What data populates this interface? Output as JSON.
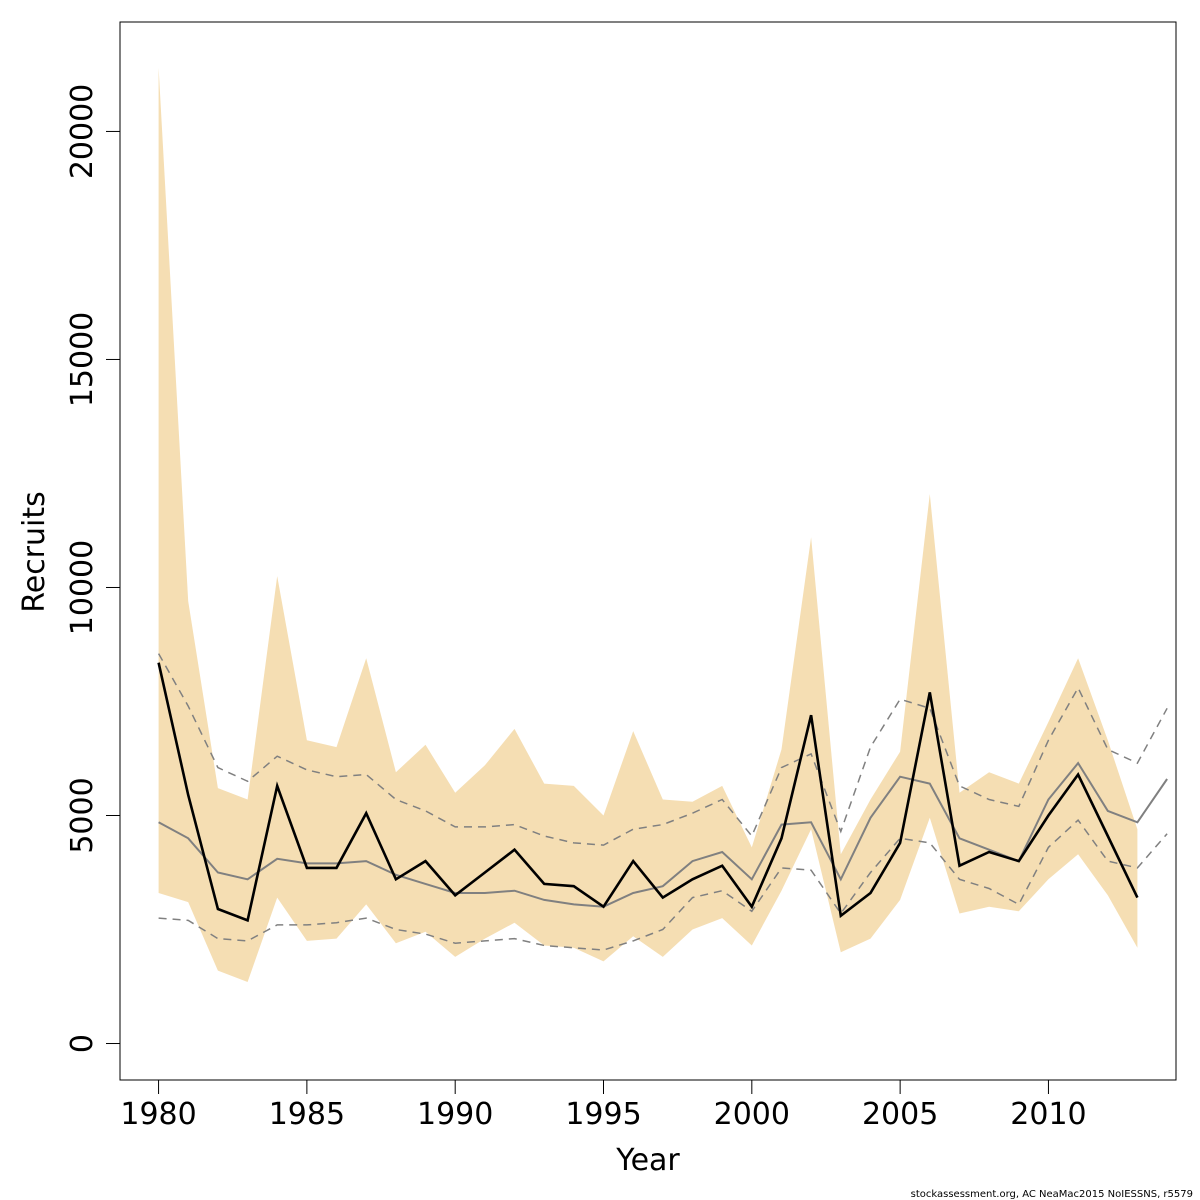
{
  "chart_data": {
    "type": "line",
    "xlabel": "Year",
    "ylabel": "Recruits",
    "xlim": [
      1978.7,
      2014.3
    ],
    "ylim": [
      -800,
      22400
    ],
    "xticks": [
      "1980",
      "1985",
      "1990",
      "1995",
      "2000",
      "2005",
      "2010"
    ],
    "yticks": [
      "0",
      "5000",
      "10000",
      "15000",
      "20000"
    ],
    "grid": false,
    "legend": "none",
    "colors": {
      "band": "#f5deb3",
      "estimate": "#000000",
      "alt_estimate": "#808080",
      "alt_bounds": "#808080"
    },
    "x": [
      1980,
      1981,
      1982,
      1983,
      1984,
      1985,
      1986,
      1987,
      1988,
      1989,
      1990,
      1991,
      1992,
      1993,
      1994,
      1995,
      1996,
      1997,
      1998,
      1999,
      2000,
      2001,
      2002,
      2003,
      2004,
      2005,
      2006,
      2007,
      2008,
      2009,
      2010,
      2011,
      2012,
      2013,
      2014
    ],
    "series": [
      {
        "role": "estimate",
        "values": [
          8350,
          5450,
          2950,
          2700,
          5650,
          3850,
          3850,
          5050,
          3600,
          4000,
          3250,
          3750,
          4250,
          3500,
          3450,
          3000,
          4000,
          3200,
          3600,
          3900,
          3000,
          4500,
          7200,
          2800,
          3300,
          4400,
          7700,
          3900,
          4200,
          4000,
          5000,
          5900,
          4550,
          3200,
          null
        ]
      },
      {
        "role": "upper_bound",
        "values": [
          21400,
          9700,
          5600,
          5350,
          10250,
          6650,
          6500,
          8450,
          5950,
          6550,
          5500,
          6100,
          6900,
          5700,
          5650,
          5000,
          6850,
          5350,
          5300,
          5650,
          4300,
          6450,
          11100,
          4150,
          5350,
          6400,
          12050,
          5500,
          5950,
          5700,
          7050,
          8450,
          6650,
          4700,
          null
        ]
      },
      {
        "role": "lower_bound",
        "values": [
          3300,
          3100,
          1600,
          1350,
          3200,
          2250,
          2300,
          3050,
          2200,
          2450,
          1900,
          2300,
          2650,
          2150,
          2100,
          1800,
          2350,
          1900,
          2500,
          2750,
          2150,
          3350,
          4700,
          2000,
          2300,
          3150,
          4950,
          2850,
          3000,
          2900,
          3600,
          4150,
          3250,
          2100,
          null
        ]
      },
      {
        "role": "alt_estimate",
        "values": [
          4850,
          4500,
          3750,
          3600,
          4050,
          3950,
          3950,
          4000,
          3700,
          3500,
          3300,
          3300,
          3350,
          3150,
          3050,
          3000,
          3300,
          3450,
          4000,
          4200,
          3600,
          4800,
          4850,
          3600,
          4950,
          5850,
          5700,
          4500,
          4250,
          4000,
          5350,
          6150,
          5100,
          4850,
          5800
        ]
      },
      {
        "role": "alt_upper_bound",
        "values": [
          8550,
          7400,
          6050,
          5750,
          6300,
          6000,
          5850,
          5900,
          5350,
          5100,
          4750,
          4750,
          4800,
          4550,
          4400,
          4350,
          4700,
          4800,
          5050,
          5350,
          4550,
          6050,
          6350,
          4650,
          6500,
          7550,
          7350,
          5650,
          5350,
          5200,
          6650,
          7800,
          6450,
          6150,
          7350
        ]
      },
      {
        "role": "alt_lower_bound",
        "values": [
          2750,
          2700,
          2300,
          2250,
          2600,
          2600,
          2650,
          2750,
          2500,
          2400,
          2200,
          2250,
          2300,
          2150,
          2100,
          2050,
          2250,
          2500,
          3200,
          3350,
          2900,
          3850,
          3800,
          2850,
          3750,
          4500,
          4400,
          3600,
          3400,
          3050,
          4300,
          4900,
          4000,
          3850,
          4600
        ]
      }
    ]
  },
  "footer": {
    "credit": "stockassessment.org, AC  NeaMac2015  NoIESSNS, r5579"
  }
}
